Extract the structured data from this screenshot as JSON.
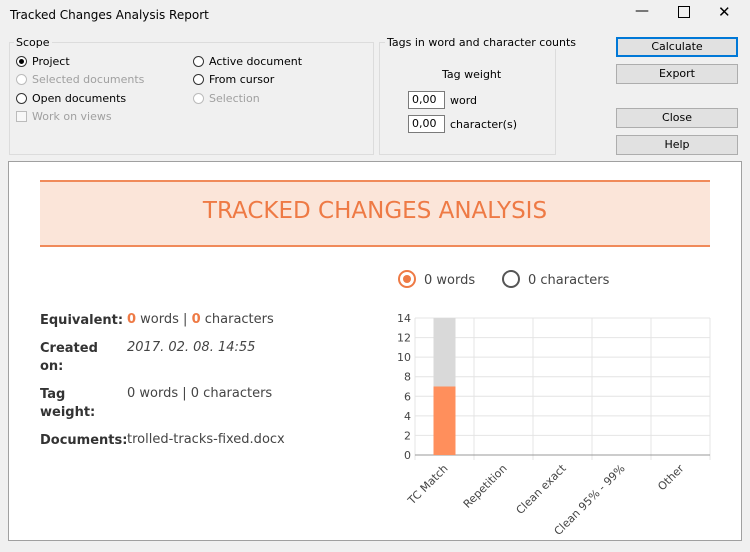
{
  "window": {
    "title": "Tracked Changes Analysis Report"
  },
  "scope": {
    "title": "Scope",
    "options": [
      {
        "label": "Project",
        "kind": "radio",
        "checked": true,
        "disabled": false
      },
      {
        "label": "Selected documents",
        "kind": "radio",
        "checked": false,
        "disabled": true
      },
      {
        "label": "Open documents",
        "kind": "radio",
        "checked": false,
        "disabled": false
      },
      {
        "label": "Work on views",
        "kind": "checkbox",
        "checked": false,
        "disabled": true
      },
      {
        "label": "Active document",
        "kind": "radio",
        "checked": false,
        "disabled": false
      },
      {
        "label": "From cursor",
        "kind": "radio",
        "checked": false,
        "disabled": false
      },
      {
        "label": "Selection",
        "kind": "radio",
        "checked": false,
        "disabled": true
      }
    ]
  },
  "tags": {
    "title": "Tags in word and character counts",
    "subtitle": "Tag weight",
    "word_value": "0,00",
    "word_label": "word",
    "char_value": "0,00",
    "char_label": "character(s)"
  },
  "buttons": [
    "Calculate",
    "Export",
    "Close",
    "Help"
  ],
  "report": {
    "title": "TRACKED CHANGES ANALYSIS",
    "toggle": [
      "0 words",
      "0 characters"
    ],
    "equivalent": {
      "label": "Equivalent:",
      "parts": [
        "0",
        " words | ",
        "0",
        " characters"
      ]
    },
    "created": {
      "label": "Created on:",
      "value": "2017. 02. 08. 14:55"
    },
    "tag_weight": {
      "label": "Tag weight:",
      "value": "0 words | 0 characters"
    },
    "documents": {
      "label": "Documents:",
      "value": "trolled-tracks-fixed.docx"
    }
  },
  "chart_data": {
    "type": "stacked-bar",
    "categories": [
      "TC Match",
      "Repetition",
      "Clean exact",
      "Clean 95% - 99%",
      "Other"
    ],
    "series": [
      {
        "color": "#ff8f5c",
        "values": [
          7,
          0,
          0,
          0,
          0
        ]
      },
      {
        "color": "#d9d9d9",
        "values": [
          7,
          0,
          0,
          0,
          0
        ]
      }
    ],
    "ylim": [
      0,
      14
    ],
    "yticks": [
      0,
      2,
      4,
      6,
      8,
      10,
      12,
      14
    ],
    "grid": true
  }
}
